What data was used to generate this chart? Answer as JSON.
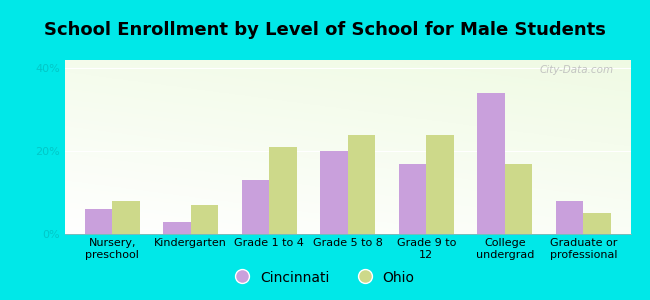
{
  "title": "School Enrollment by Level of School for Male Students",
  "categories": [
    "Nursery,\npreschool",
    "Kindergarten",
    "Grade 1 to 4",
    "Grade 5 to 8",
    "Grade 9 to\n12",
    "College\nundergrad",
    "Graduate or\nprofessional"
  ],
  "cincinnati": [
    6,
    3,
    13,
    20,
    17,
    34,
    8
  ],
  "ohio": [
    8,
    7,
    21,
    24,
    24,
    17,
    5
  ],
  "cincinnati_color": "#c9a0dc",
  "ohio_color": "#cdd98a",
  "background_color": "#00e8e8",
  "plot_bg_color": "#e8f5e0",
  "yticks": [
    0,
    20,
    40
  ],
  "ylim": [
    0,
    42
  ],
  "legend_labels": [
    "Cincinnati",
    "Ohio"
  ],
  "bar_width": 0.35,
  "title_fontsize": 13,
  "tick_fontsize": 8,
  "legend_fontsize": 10,
  "axis_label_color": "#00c8c8",
  "watermark": "City-Data.com"
}
